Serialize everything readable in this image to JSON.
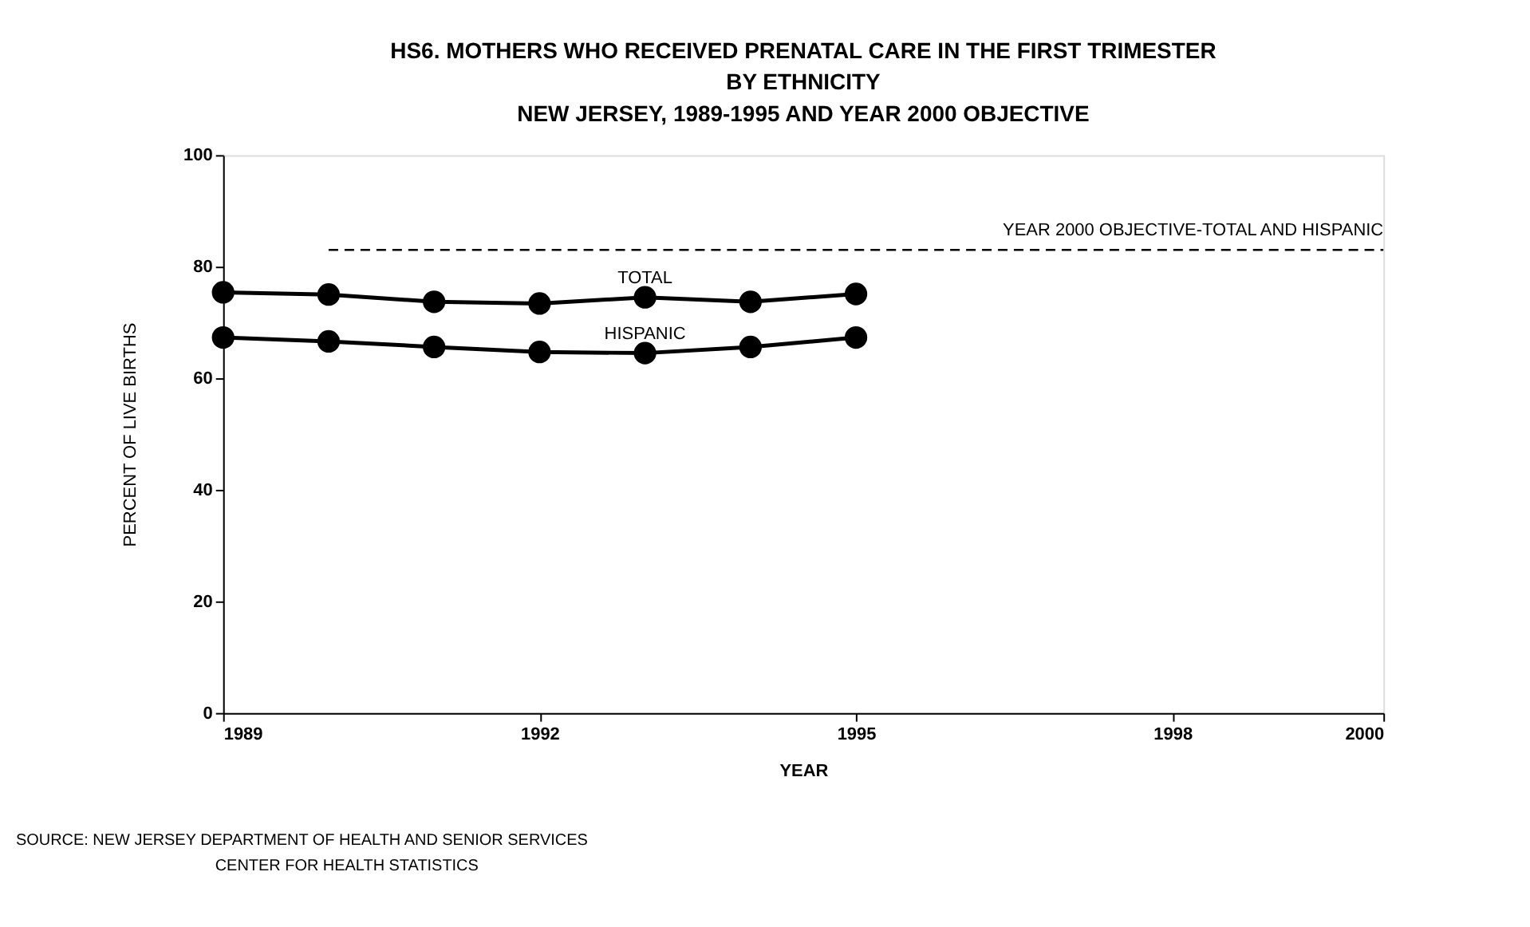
{
  "chart_data": {
    "type": "line",
    "title": [
      "HS6.  MOTHERS WHO RECEIVED PRENATAL CARE IN THE FIRST TRIMESTER",
      "BY ETHNICITY",
      "NEW JERSEY, 1989-1995 AND YEAR 2000 OBJECTIVE"
    ],
    "xlabel": "YEAR",
    "ylabel": "PERCENT OF LIVE BIRTHS",
    "x": [
      1989,
      1990,
      1991,
      1992,
      1993,
      1994,
      1995
    ],
    "series": [
      {
        "name": "TOTAL",
        "color": "#000000",
        "values": [
          75.4,
          75.0,
          73.7,
          73.4,
          74.5,
          73.7,
          75.1
        ]
      },
      {
        "name": "HISPANIC",
        "color": "#000000",
        "values": [
          67.3,
          66.6,
          65.6,
          64.7,
          64.5,
          65.6,
          67.3
        ]
      },
      {
        "name": "YEAR 2000 OBJECTIVE-TOTAL AND HISPANIC",
        "color": "#000000",
        "x": [
          1990,
          2000
        ],
        "values": [
          83,
          83
        ],
        "line_style": "dashed",
        "marker": "none"
      }
    ],
    "marker": "circle",
    "line_style": "solid",
    "xlim": [
      1989,
      2000
    ],
    "xticks": [
      1989,
      1992,
      1995,
      1998,
      2000
    ],
    "ylim": [
      0,
      100
    ],
    "yticks": [
      0,
      20,
      40,
      60,
      80,
      100
    ],
    "grid": false,
    "annotations": [
      "SOURCE:     NEW JERSEY DEPARTMENT OF HEALTH AND SENIOR SERVICES",
      "CENTER FOR HEALTH STATISTICS"
    ]
  }
}
